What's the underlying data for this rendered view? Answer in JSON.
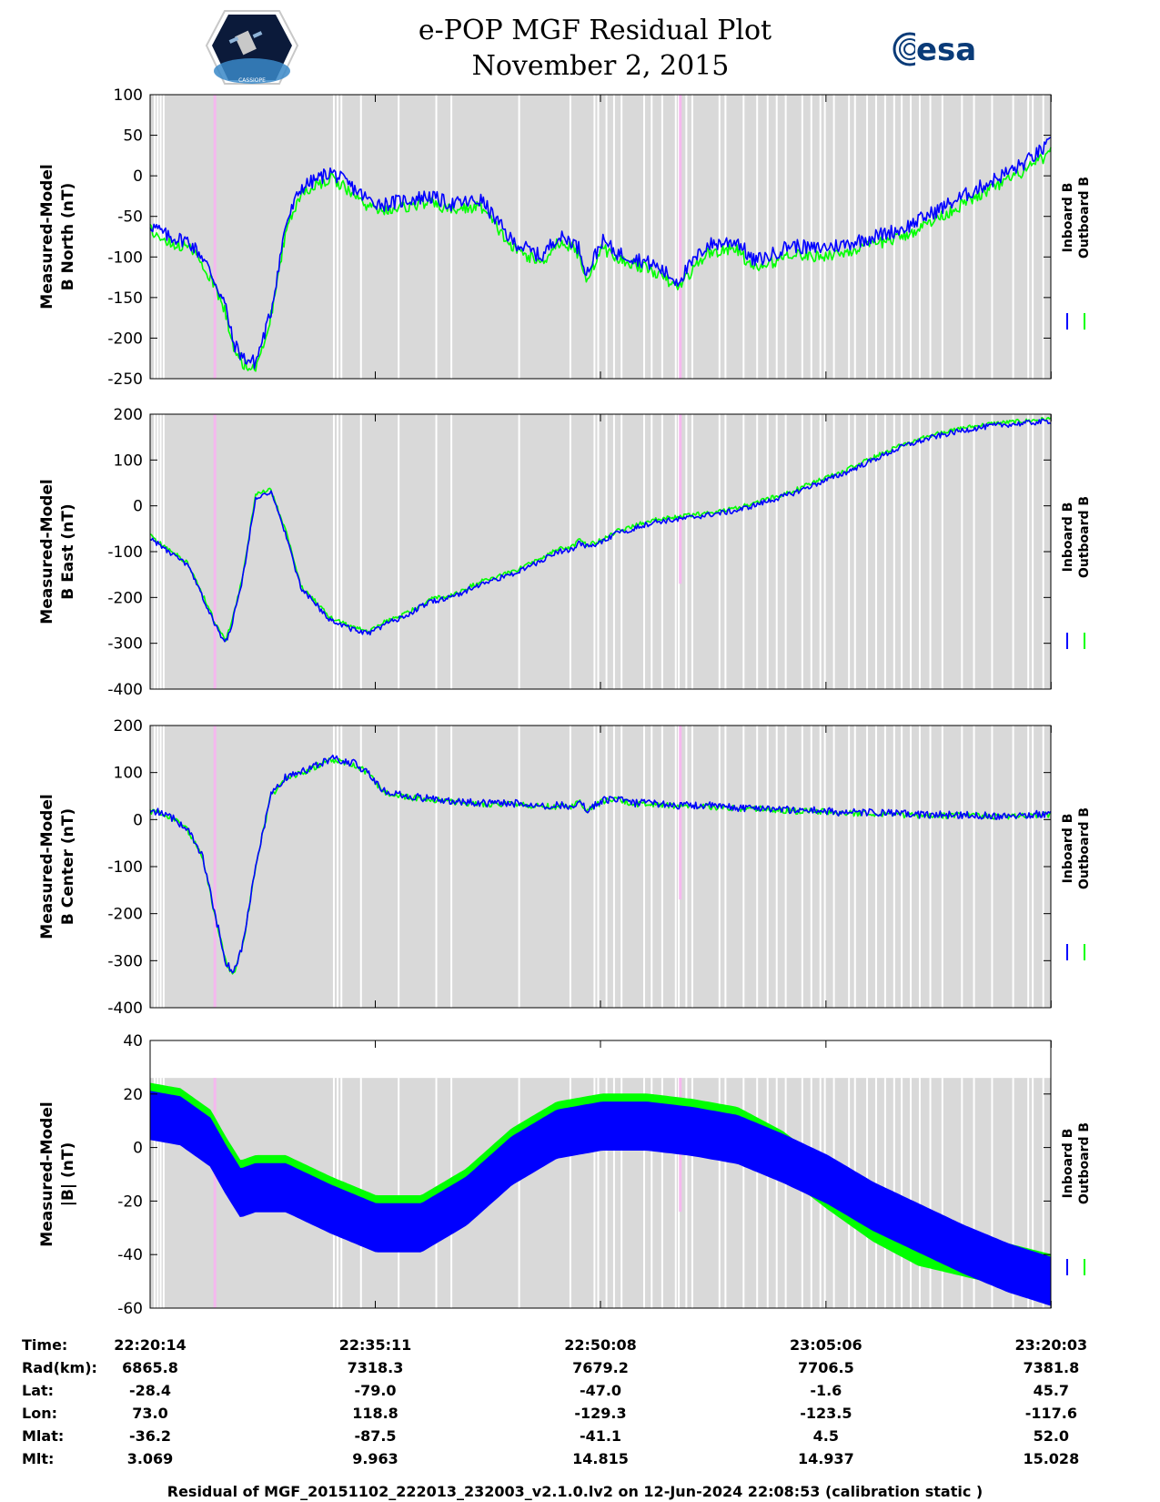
{
  "header": {
    "title_line1": "e-POP MGF Residual Plot",
    "title_line2": "November 2, 2015",
    "left_logo_text": "CASSIOPE",
    "right_logo_text": "esa"
  },
  "colors": {
    "inboard": "#0000ff",
    "outboard": "#00ff00",
    "background": "#d9d9d9",
    "data_gap": "#ffffff",
    "marker": "#f5b8ee"
  },
  "legend": {
    "inboard_label": "Inboard B",
    "outboard_label": "Outboard B"
  },
  "chart_data": [
    {
      "type": "line",
      "ylabel_line1": "Measured-Model",
      "ylabel_line2": "B North (nT)",
      "ylim": [
        -250,
        100
      ],
      "yticks": [
        -250,
        -200,
        -150,
        -100,
        -50,
        0,
        50,
        100
      ],
      "x": [
        0,
        1.2,
        2.5,
        3.5,
        4.3,
        5.0,
        5.5,
        6.2,
        7.0,
        8.0,
        9.0,
        10.0,
        12.0,
        13.5,
        14.5,
        15.5,
        17.0,
        18.5,
        20.0,
        22.0,
        24.0,
        26.0,
        27.0,
        28.0,
        28.5,
        29.0,
        30.0,
        31.0,
        32.0,
        33.5,
        35.0,
        37.0,
        39.0,
        40.0,
        41.0,
        42.5,
        44.0,
        46.0,
        48.0,
        50.0,
        52.0,
        54.0,
        56.0,
        58.0,
        59.8
      ],
      "series": [
        {
          "name": "Inboard B",
          "values": [
            -60,
            -75,
            -80,
            -100,
            -130,
            -160,
            -205,
            -225,
            -230,
            -170,
            -60,
            -15,
            5,
            -15,
            -30,
            -35,
            -30,
            -25,
            -35,
            -30,
            -80,
            -100,
            -75,
            -80,
            -90,
            -120,
            -80,
            -95,
            -100,
            -110,
            -130,
            -85,
            -80,
            -105,
            -100,
            -85,
            -90,
            -85,
            -75,
            -65,
            -45,
            -25,
            -5,
            15,
            40
          ]
        },
        {
          "name": "Outboard B",
          "values": [
            -65,
            -82,
            -88,
            -108,
            -138,
            -168,
            -212,
            -232,
            -236,
            -176,
            -68,
            -22,
            -2,
            -22,
            -38,
            -42,
            -38,
            -33,
            -42,
            -38,
            -88,
            -108,
            -82,
            -88,
            -98,
            -128,
            -88,
            -103,
            -108,
            -118,
            -138,
            -95,
            -90,
            -115,
            -110,
            -95,
            -100,
            -95,
            -85,
            -75,
            -55,
            -35,
            -15,
            5,
            28
          ]
        }
      ]
    },
    {
      "type": "line",
      "ylabel_line1": "Measured-Model",
      "ylabel_line2": "B East (nT)",
      "ylim": [
        -400,
        200
      ],
      "yticks": [
        -400,
        -300,
        -200,
        -100,
        0,
        100,
        200
      ],
      "x": [
        0,
        1.2,
        2.5,
        3.5,
        4.3,
        5.0,
        5.5,
        6.2,
        7.0,
        8.0,
        9.0,
        10.0,
        12.0,
        13.5,
        14.5,
        15.5,
        17.0,
        18.5,
        20.0,
        22.0,
        24.0,
        26.0,
        27.0,
        28.0,
        28.5,
        29.0,
        30.0,
        31.0,
        32.0,
        33.5,
        35.0,
        37.0,
        39.0,
        40.0,
        41.0,
        42.5,
        44.0,
        46.0,
        48.0,
        50.0,
        52.0,
        54.0,
        56.0,
        58.0,
        59.8
      ],
      "series": [
        {
          "name": "Inboard B",
          "values": [
            -70,
            -100,
            -130,
            -200,
            -260,
            -300,
            -250,
            -150,
            20,
            30,
            -60,
            -180,
            -250,
            -270,
            -280,
            -260,
            -240,
            -210,
            -200,
            -170,
            -150,
            -120,
            -100,
            -95,
            -80,
            -90,
            -80,
            -60,
            -50,
            -35,
            -30,
            -20,
            -10,
            0,
            10,
            25,
            45,
            70,
            100,
            130,
            150,
            165,
            175,
            180,
            185
          ]
        },
        {
          "name": "Outboard B",
          "values": [
            -65,
            -95,
            -125,
            -195,
            -255,
            -295,
            -245,
            -145,
            25,
            35,
            -55,
            -175,
            -245,
            -265,
            -275,
            -255,
            -235,
            -205,
            -195,
            -165,
            -145,
            -115,
            -95,
            -90,
            -75,
            -85,
            -75,
            -55,
            -45,
            -30,
            -25,
            -15,
            -5,
            5,
            15,
            30,
            50,
            75,
            105,
            135,
            155,
            170,
            180,
            185,
            190
          ]
        }
      ]
    },
    {
      "type": "line",
      "ylabel_line1": "Measured-Model",
      "ylabel_line2": "B Center (nT)",
      "ylim": [
        -400,
        200
      ],
      "yticks": [
        -400,
        -300,
        -200,
        -100,
        0,
        100,
        200
      ],
      "x": [
        0,
        1.2,
        2.5,
        3.5,
        4.3,
        5.0,
        5.5,
        6.2,
        7.0,
        8.0,
        9.0,
        10.0,
        12.0,
        13.5,
        14.5,
        15.5,
        17.0,
        18.5,
        20.0,
        22.0,
        24.0,
        26.0,
        27.0,
        28.0,
        28.5,
        29.0,
        30.0,
        31.0,
        32.0,
        33.5,
        35.0,
        37.0,
        39.0,
        40.0,
        41.0,
        42.5,
        44.0,
        46.0,
        48.0,
        50.0,
        52.0,
        54.0,
        56.0,
        58.0,
        59.8
      ],
      "series": [
        {
          "name": "Inboard B",
          "values": [
            20,
            10,
            -20,
            -80,
            -200,
            -300,
            -330,
            -260,
            -100,
            50,
            90,
            100,
            130,
            120,
            100,
            60,
            50,
            45,
            40,
            35,
            35,
            30,
            30,
            30,
            40,
            20,
            40,
            45,
            35,
            35,
            30,
            30,
            25,
            25,
            25,
            20,
            20,
            15,
            15,
            12,
            10,
            10,
            8,
            10,
            12
          ]
        },
        {
          "name": "Outboard B",
          "values": [
            18,
            8,
            -22,
            -82,
            -202,
            -302,
            -332,
            -262,
            -102,
            48,
            88,
            98,
            128,
            118,
            98,
            58,
            48,
            43,
            38,
            33,
            33,
            28,
            28,
            28,
            38,
            18,
            38,
            43,
            33,
            33,
            28,
            28,
            23,
            23,
            23,
            18,
            18,
            13,
            13,
            10,
            8,
            8,
            6,
            8,
            10
          ]
        }
      ]
    },
    {
      "type": "line",
      "ylabel_line1": "Measured-Model",
      "ylabel_line2": "|B| (nT)",
      "ylim": [
        -60,
        40
      ],
      "yticks": [
        -60,
        -40,
        -20,
        0,
        20,
        40
      ],
      "x": [
        0,
        2,
        4,
        5,
        6,
        7,
        9,
        12,
        15,
        18,
        21,
        24,
        27,
        30,
        33,
        36,
        39,
        42,
        45,
        48,
        51,
        54,
        57,
        59.8
      ],
      "series": [
        {
          "name": "Inboard B",
          "values": [
            12,
            10,
            2,
            -8,
            -17,
            -15,
            -15,
            -23,
            -30,
            -30,
            -20,
            -5,
            5,
            8,
            8,
            6,
            3,
            -4,
            -12,
            -22,
            -30,
            -38,
            -45,
            -50
          ]
        },
        {
          "name": "Outboard B",
          "values": [
            16,
            14,
            6,
            -4,
            -13,
            -11,
            -11,
            -19,
            -26,
            -26,
            -16,
            -1,
            9,
            12,
            12,
            10,
            7,
            -2,
            -15,
            -27,
            -36,
            -40,
            -44,
            -48
          ]
        }
      ]
    }
  ],
  "time_axis": {
    "xlim_minutes": [
      0,
      59.8
    ],
    "tick_minutes": [
      0,
      14.95,
      29.9,
      44.87,
      59.82
    ],
    "rows": [
      {
        "label": "Time:",
        "values": [
          "22:20:14",
          "22:35:11",
          "22:50:08",
          "23:05:06",
          "23:20:03"
        ]
      },
      {
        "label": "Rad(km):",
        "values": [
          "6865.8",
          "7318.3",
          "7679.2",
          "7706.5",
          "7381.8"
        ]
      },
      {
        "label": "Lat:",
        "values": [
          "-28.4",
          "-79.0",
          "-47.0",
          "-1.6",
          "45.7"
        ]
      },
      {
        "label": "Lon:",
        "values": [
          "73.0",
          "118.8",
          "-129.3",
          "-123.5",
          "-117.6"
        ]
      },
      {
        "label": "Mlat:",
        "values": [
          "-36.2",
          "-87.5",
          "-41.1",
          "4.5",
          "52.0"
        ]
      },
      {
        "label": "Mlt:",
        "values": [
          "3.069",
          "9.963",
          "14.815",
          "14.937",
          "15.028"
        ]
      }
    ]
  },
  "gaps_minutes": [
    0.3,
    0.5,
    0.7,
    0.9,
    12.2,
    12.45,
    12.7,
    14.0,
    16.5,
    19.0,
    20.0,
    24.5,
    27.9,
    29.5,
    29.75,
    30.3,
    30.8,
    31.3,
    32.8,
    33.3,
    34.0,
    34.9,
    35.1,
    35.6,
    36.0,
    37.8,
    38.2,
    39.4,
    40.3,
    41.0,
    41.6,
    42.2,
    43.3,
    43.9,
    44.5,
    44.8,
    45.4,
    46.4,
    46.8,
    47.6,
    48.2,
    48.8,
    49.4,
    49.9,
    50.5,
    51.1,
    51.8,
    52.6,
    53.9,
    54.7,
    55.9,
    57.3,
    58.3,
    58.6,
    59.3
  ],
  "markers_minutes": [
    4.3,
    35.2
  ],
  "footer": "Residual of MGF_20151102_222013_232003_v2.1.0.lv2 on 12-Jun-2024 22:08:53 (calibration static )"
}
